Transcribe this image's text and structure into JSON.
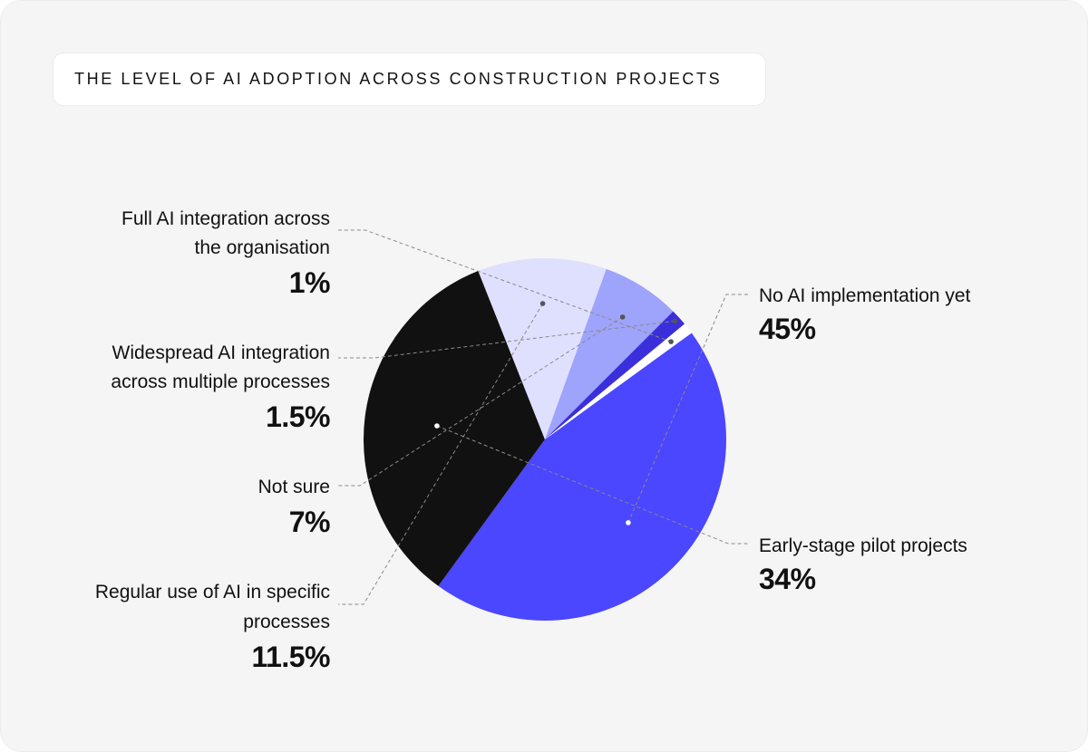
{
  "title": "THE LEVEL OF AI ADOPTION ACROSS CONSTRUCTION PROJECTS",
  "chart_data": {
    "type": "pie",
    "title": "THE LEVEL OF AI ADOPTION ACROSS CONSTRUCTION PROJECTS",
    "unit": "%",
    "slices": [
      {
        "label": "No AI implementation yet",
        "value": 45,
        "value_label": "45%",
        "color": "#4b46ff"
      },
      {
        "label": "Early-stage pilot projects",
        "value": 34,
        "value_label": "34%",
        "color": "#111111"
      },
      {
        "label": "Regular use of AI in specific processes",
        "value": 11.5,
        "value_label": "11.5%",
        "color": "#dfe0fd"
      },
      {
        "label": "Not sure",
        "value": 7,
        "value_label": "7%",
        "color": "#9ea3fb"
      },
      {
        "label": "Widespread AI integration across multiple processes",
        "value": 1.5,
        "value_label": "1.5%",
        "color": "#3a2fdb"
      },
      {
        "label": "Full AI integration across the organisation",
        "value": 1,
        "value_label": "1%",
        "color": "#ffffff"
      }
    ]
  },
  "labels": [
    {
      "lines": [
        "No AI implementation yet"
      ],
      "pct": "45%"
    },
    {
      "lines": [
        "Early-stage pilot projects"
      ],
      "pct": "34%"
    },
    {
      "lines": [
        "Regular use of AI in specific",
        "processes"
      ],
      "pct": "11.5%"
    },
    {
      "lines": [
        "Not sure"
      ],
      "pct": "7%"
    },
    {
      "lines": [
        "Widespread AI integration",
        "across multiple processes"
      ],
      "pct": "1.5%"
    },
    {
      "lines": [
        "Full AI integration across",
        "the organisation"
      ],
      "pct": "1%"
    }
  ]
}
